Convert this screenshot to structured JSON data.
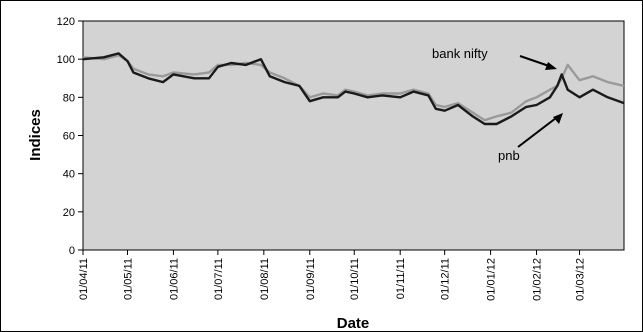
{
  "chart_data": {
    "type": "line",
    "title": "",
    "xlabel": "Date",
    "ylabel": "Indices",
    "ylim": [
      0,
      120
    ],
    "yticks": [
      "0",
      "20",
      "40",
      "60",
      "80",
      "100",
      "120"
    ],
    "xticks": [
      "01/04/11",
      "01/05/11",
      "01/06/11",
      "01/07/11",
      "01/08/11",
      "01/09/11",
      "01/10/11",
      "01/11/11",
      "01/12/11",
      "01/01/12",
      "01/02/12",
      "01/03/12"
    ],
    "x": [
      "2011-04-01",
      "2011-04-15",
      "2011-04-25",
      "2011-05-01",
      "2011-05-05",
      "2011-05-15",
      "2011-05-25",
      "2011-06-01",
      "2011-06-15",
      "2011-06-25",
      "2011-07-01",
      "2011-07-10",
      "2011-07-20",
      "2011-07-30",
      "2011-08-05",
      "2011-08-15",
      "2011-08-25",
      "2011-09-01",
      "2011-09-10",
      "2011-09-20",
      "2011-09-25",
      "2011-10-01",
      "2011-10-10",
      "2011-10-20",
      "2011-11-01",
      "2011-11-10",
      "2011-11-20",
      "2011-11-25",
      "2011-12-01",
      "2011-12-10",
      "2011-12-20",
      "2011-12-28",
      "2012-01-05",
      "2012-01-15",
      "2012-01-25",
      "2012-02-01",
      "2012-02-10",
      "2012-02-15",
      "2012-02-18",
      "2012-02-22",
      "2012-03-01",
      "2012-03-10",
      "2012-03-20",
      "2012-03-31"
    ],
    "series": [
      {
        "name": "bank nifty",
        "color": "#9a9a9a",
        "values": [
          101,
          100,
          102,
          99,
          95,
          92,
          91,
          93,
          92,
          93,
          97,
          97,
          98,
          97,
          93,
          90,
          86,
          80,
          82,
          81,
          84,
          83,
          81,
          82,
          82,
          84,
          82,
          76,
          75,
          77,
          72,
          68,
          70,
          72,
          78,
          80,
          84,
          86,
          90,
          97,
          89,
          91,
          88,
          86
        ]
      },
      {
        "name": "pnb",
        "color": "#1a1a1a",
        "values": [
          100,
          101,
          103,
          99,
          93,
          90,
          88,
          92,
          90,
          90,
          96,
          98,
          97,
          100,
          91,
          88,
          86,
          78,
          80,
          80,
          83,
          82,
          80,
          81,
          80,
          83,
          81,
          74,
          73,
          76,
          70,
          66,
          66,
          70,
          75,
          76,
          80,
          86,
          92,
          84,
          80,
          84,
          80,
          77
        ]
      }
    ],
    "annotations": [
      {
        "text": "bank nifty",
        "series": "bank nifty"
      },
      {
        "text": "pnb",
        "series": "pnb"
      }
    ],
    "grid": false,
    "legend": "none",
    "plot_background": "#d3d3d3"
  }
}
